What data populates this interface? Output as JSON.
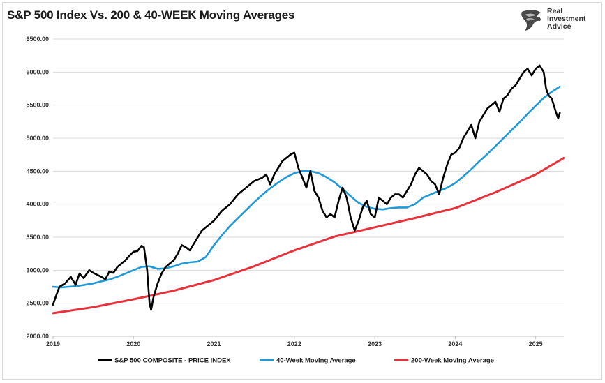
{
  "title": "S&P 500 Index Vs. 200 & 40-WEEK Moving Averages",
  "logo": {
    "lines": [
      "Real",
      "Investment",
      "Advice"
    ],
    "icon": "eagle-head-icon"
  },
  "chart_data": {
    "type": "line",
    "title": "S&P 500 Index Vs. 200 & 40-WEEK Moving Averages",
    "xlabel": "",
    "ylabel": "",
    "xlim": [
      2019.0,
      2025.35
    ],
    "ylim": [
      2000,
      6500
    ],
    "y_ticks": [
      "2000.00",
      "2500.00",
      "3000.00",
      "3500.00",
      "4000.00",
      "4500.00",
      "5000.00",
      "5500.00",
      "6000.00",
      "6500.00"
    ],
    "x_ticks": [
      "2019",
      "2020",
      "2021",
      "2022",
      "2023",
      "2024",
      "2025"
    ],
    "grid": {
      "horizontal": true,
      "vertical": false
    },
    "legend_position": "bottom",
    "series": [
      {
        "name": "S&P 500 COMPOSITE - PRICE INDEX",
        "color": "#000000",
        "x": [
          2019.0,
          2019.04,
          2019.08,
          2019.15,
          2019.22,
          2019.28,
          2019.33,
          2019.38,
          2019.45,
          2019.5,
          2019.55,
          2019.6,
          2019.65,
          2019.7,
          2019.75,
          2019.8,
          2019.85,
          2019.9,
          2019.95,
          2020.0,
          2020.05,
          2020.1,
          2020.13,
          2020.17,
          2020.2,
          2020.22,
          2020.25,
          2020.3,
          2020.35,
          2020.4,
          2020.45,
          2020.5,
          2020.55,
          2020.6,
          2020.65,
          2020.7,
          2020.75,
          2020.8,
          2020.85,
          2020.9,
          2020.95,
          2021.0,
          2021.1,
          2021.2,
          2021.3,
          2021.4,
          2021.5,
          2021.6,
          2021.65,
          2021.7,
          2021.75,
          2021.8,
          2021.85,
          2021.9,
          2021.95,
          2022.0,
          2022.05,
          2022.1,
          2022.15,
          2022.2,
          2022.25,
          2022.3,
          2022.35,
          2022.4,
          2022.45,
          2022.5,
          2022.55,
          2022.6,
          2022.65,
          2022.7,
          2022.75,
          2022.8,
          2022.85,
          2022.9,
          2022.95,
          2023.0,
          2023.05,
          2023.1,
          2023.15,
          2023.2,
          2023.25,
          2023.3,
          2023.35,
          2023.4,
          2023.45,
          2023.5,
          2023.55,
          2023.6,
          2023.65,
          2023.7,
          2023.75,
          2023.8,
          2023.85,
          2023.9,
          2023.95,
          2024.0,
          2024.05,
          2024.1,
          2024.15,
          2024.2,
          2024.25,
          2024.3,
          2024.35,
          2024.4,
          2024.45,
          2024.5,
          2024.55,
          2024.6,
          2024.65,
          2024.7,
          2024.75,
          2024.8,
          2024.85,
          2024.9,
          2024.95,
          2025.0,
          2025.05,
          2025.1,
          2025.13,
          2025.16,
          2025.2,
          2025.25,
          2025.28,
          2025.3
        ],
        "y": [
          2480,
          2620,
          2750,
          2800,
          2900,
          2780,
          2950,
          2880,
          3000,
          2960,
          2930,
          2900,
          2860,
          2980,
          2960,
          3050,
          3100,
          3150,
          3220,
          3280,
          3290,
          3370,
          3350,
          3000,
          2500,
          2400,
          2600,
          2800,
          2950,
          3050,
          3100,
          3150,
          3250,
          3380,
          3350,
          3300,
          3400,
          3500,
          3600,
          3650,
          3700,
          3750,
          3900,
          4000,
          4150,
          4250,
          4350,
          4400,
          4450,
          4300,
          4450,
          4550,
          4650,
          4700,
          4750,
          4780,
          4550,
          4400,
          4250,
          4500,
          4200,
          4100,
          3900,
          3800,
          3850,
          3800,
          4050,
          4250,
          4100,
          3800,
          3600,
          3750,
          3950,
          4050,
          3850,
          3800,
          4100,
          4050,
          4000,
          4100,
          4150,
          4150,
          4100,
          4200,
          4300,
          4450,
          4550,
          4500,
          4450,
          4350,
          4300,
          4150,
          4400,
          4600,
          4750,
          4780,
          4850,
          5000,
          5100,
          5200,
          5000,
          5250,
          5350,
          5450,
          5500,
          5550,
          5400,
          5600,
          5650,
          5750,
          5800,
          5900,
          6000,
          6050,
          5950,
          6050,
          6100,
          6000,
          5750,
          5650,
          5600,
          5400,
          5300,
          5380
        ]
      },
      {
        "name": "40-Week Moving Average",
        "color": "#1f9ad6",
        "x": [
          2019.0,
          2019.1,
          2019.2,
          2019.3,
          2019.4,
          2019.5,
          2019.6,
          2019.7,
          2019.8,
          2019.9,
          2020.0,
          2020.1,
          2020.2,
          2020.3,
          2020.4,
          2020.5,
          2020.6,
          2020.7,
          2020.8,
          2020.9,
          2021.0,
          2021.1,
          2021.2,
          2021.3,
          2021.4,
          2021.5,
          2021.6,
          2021.7,
          2021.8,
          2021.9,
          2022.0,
          2022.1,
          2022.2,
          2022.3,
          2022.4,
          2022.5,
          2022.6,
          2022.7,
          2022.8,
          2022.9,
          2023.0,
          2023.1,
          2023.2,
          2023.3,
          2023.4,
          2023.5,
          2023.6,
          2023.7,
          2023.8,
          2023.9,
          2024.0,
          2024.1,
          2024.2,
          2024.3,
          2024.4,
          2024.5,
          2024.6,
          2024.7,
          2024.8,
          2024.9,
          2025.0,
          2025.1,
          2025.2,
          2025.3
        ],
        "y": [
          2750,
          2740,
          2750,
          2760,
          2780,
          2800,
          2830,
          2860,
          2900,
          2950,
          3000,
          3050,
          3060,
          3020,
          3030,
          3060,
          3100,
          3120,
          3130,
          3200,
          3380,
          3530,
          3670,
          3790,
          3910,
          4030,
          4140,
          4240,
          4330,
          4410,
          4470,
          4500,
          4500,
          4470,
          4410,
          4330,
          4230,
          4120,
          4020,
          3960,
          3930,
          3920,
          3940,
          3950,
          3950,
          4000,
          4100,
          4150,
          4200,
          4250,
          4320,
          4420,
          4530,
          4650,
          4760,
          4880,
          5000,
          5120,
          5240,
          5370,
          5490,
          5610,
          5700,
          5780
        ]
      },
      {
        "name": "200-Week Moving Average",
        "color": "#e8323b",
        "x": [
          2019.0,
          2019.5,
          2020.0,
          2020.5,
          2021.0,
          2021.5,
          2022.0,
          2022.5,
          2023.0,
          2023.5,
          2024.0,
          2024.5,
          2025.0,
          2025.35
        ],
        "y": [
          2350,
          2440,
          2560,
          2690,
          2850,
          3060,
          3300,
          3510,
          3650,
          3790,
          3940,
          4180,
          4450,
          4700
        ]
      }
    ]
  }
}
